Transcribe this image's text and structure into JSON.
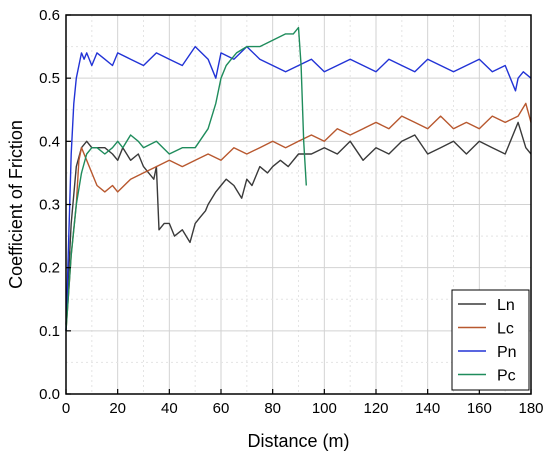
{
  "chart_data": {
    "type": "line",
    "xlabel": "Distance (m)",
    "ylabel": "Coefficient of Friction",
    "xlim": [
      0,
      180
    ],
    "ylim": [
      0.0,
      0.6
    ],
    "xticks": [
      "0",
      "20",
      "40",
      "60",
      "80",
      "100",
      "120",
      "140",
      "160",
      "180"
    ],
    "yticks": [
      "0.0",
      "0.1",
      "0.2",
      "0.3",
      "0.4",
      "0.5",
      "0.6"
    ],
    "grid": true,
    "legend_position": "bottom-right",
    "series": [
      {
        "name": "Ln",
        "color": "#3a3a3a",
        "x": [
          0,
          2,
          4,
          6,
          8,
          10,
          12,
          15,
          18,
          20,
          22,
          25,
          28,
          30,
          32,
          34,
          35,
          36,
          38,
          40,
          42,
          45,
          48,
          50,
          52,
          54,
          55,
          58,
          60,
          62,
          65,
          68,
          70,
          72,
          75,
          78,
          80,
          83,
          86,
          90,
          95,
          100,
          105,
          110,
          115,
          120,
          125,
          130,
          135,
          140,
          145,
          150,
          155,
          160,
          165,
          170,
          175,
          178,
          180
        ],
        "y": [
          0.11,
          0.27,
          0.36,
          0.39,
          0.4,
          0.39,
          0.39,
          0.39,
          0.38,
          0.37,
          0.39,
          0.37,
          0.38,
          0.36,
          0.35,
          0.34,
          0.36,
          0.26,
          0.27,
          0.27,
          0.25,
          0.26,
          0.24,
          0.27,
          0.28,
          0.29,
          0.3,
          0.32,
          0.33,
          0.34,
          0.33,
          0.31,
          0.34,
          0.33,
          0.36,
          0.35,
          0.36,
          0.37,
          0.36,
          0.38,
          0.38,
          0.39,
          0.38,
          0.4,
          0.37,
          0.39,
          0.38,
          0.4,
          0.41,
          0.38,
          0.39,
          0.4,
          0.38,
          0.4,
          0.39,
          0.38,
          0.43,
          0.39,
          0.38
        ]
      },
      {
        "name": "Lc",
        "color": "#b8582f",
        "x": [
          0,
          2,
          4,
          5,
          6,
          8,
          10,
          12,
          15,
          18,
          20,
          25,
          30,
          35,
          40,
          45,
          50,
          55,
          60,
          65,
          70,
          75,
          80,
          85,
          90,
          95,
          100,
          105,
          110,
          115,
          120,
          125,
          130,
          135,
          140,
          145,
          150,
          155,
          160,
          165,
          170,
          175,
          178,
          180
        ],
        "y": [
          0.1,
          0.22,
          0.3,
          0.37,
          0.39,
          0.37,
          0.35,
          0.33,
          0.32,
          0.33,
          0.32,
          0.34,
          0.35,
          0.36,
          0.37,
          0.36,
          0.37,
          0.38,
          0.37,
          0.39,
          0.38,
          0.39,
          0.4,
          0.39,
          0.4,
          0.41,
          0.4,
          0.42,
          0.41,
          0.42,
          0.43,
          0.42,
          0.44,
          0.43,
          0.42,
          0.44,
          0.42,
          0.43,
          0.42,
          0.44,
          0.43,
          0.44,
          0.46,
          0.43
        ]
      },
      {
        "name": "Pn",
        "color": "#2233d6",
        "x": [
          0,
          1,
          2,
          3,
          4,
          5,
          6,
          7,
          8,
          10,
          12,
          15,
          18,
          20,
          25,
          30,
          35,
          40,
          45,
          50,
          55,
          58,
          60,
          65,
          70,
          75,
          80,
          85,
          90,
          95,
          100,
          105,
          110,
          115,
          120,
          125,
          130,
          135,
          140,
          145,
          150,
          155,
          160,
          165,
          170,
          174,
          175,
          177,
          180
        ],
        "y": [
          0.1,
          0.24,
          0.38,
          0.46,
          0.5,
          0.52,
          0.54,
          0.53,
          0.54,
          0.52,
          0.54,
          0.53,
          0.52,
          0.54,
          0.53,
          0.52,
          0.54,
          0.53,
          0.52,
          0.55,
          0.53,
          0.5,
          0.54,
          0.53,
          0.55,
          0.53,
          0.52,
          0.51,
          0.52,
          0.53,
          0.51,
          0.52,
          0.53,
          0.52,
          0.51,
          0.53,
          0.52,
          0.51,
          0.53,
          0.52,
          0.51,
          0.52,
          0.53,
          0.51,
          0.52,
          0.48,
          0.5,
          0.51,
          0.5
        ]
      },
      {
        "name": "Pc",
        "color": "#1f8c5c",
        "x": [
          0,
          2,
          4,
          6,
          8,
          10,
          12,
          15,
          18,
          20,
          22,
          25,
          28,
          30,
          35,
          40,
          45,
          50,
          55,
          58,
          60,
          62,
          64,
          66,
          70,
          75,
          80,
          85,
          88,
          90,
          91,
          92,
          93
        ],
        "y": [
          0.1,
          0.22,
          0.3,
          0.35,
          0.38,
          0.39,
          0.39,
          0.38,
          0.39,
          0.4,
          0.39,
          0.41,
          0.4,
          0.39,
          0.4,
          0.38,
          0.39,
          0.39,
          0.42,
          0.46,
          0.5,
          0.52,
          0.53,
          0.54,
          0.55,
          0.55,
          0.56,
          0.57,
          0.57,
          0.58,
          0.52,
          0.4,
          0.33
        ]
      }
    ]
  }
}
